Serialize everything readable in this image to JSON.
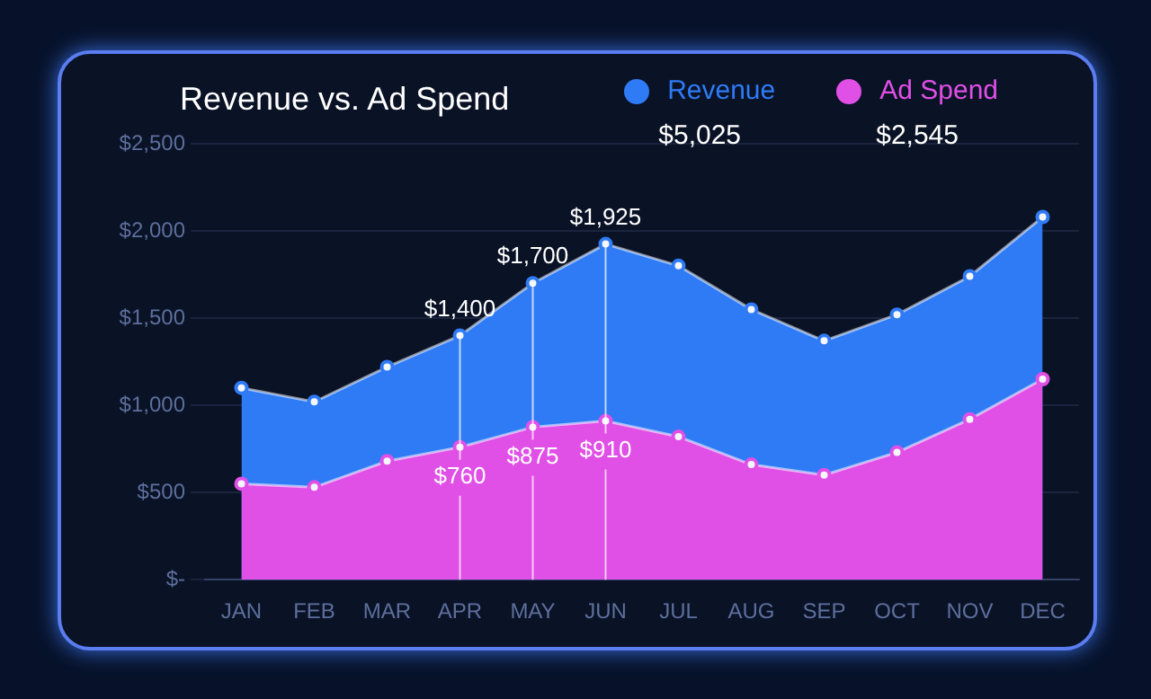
{
  "chart_data": {
    "type": "area",
    "title": "Revenue vs. Ad Spend",
    "categories": [
      "JAN",
      "FEB",
      "MAR",
      "APR",
      "MAY",
      "JUN",
      "JUL",
      "AUG",
      "SEP",
      "OCT",
      "NOV",
      "DEC"
    ],
    "series": [
      {
        "name": "Revenue",
        "color": "#2f7bf5",
        "values": [
          1100,
          1020,
          1220,
          1400,
          1700,
          1925,
          1800,
          1550,
          1370,
          1520,
          1740,
          2080
        ],
        "value_labels": [
          null,
          null,
          null,
          "$1,400",
          "$1,700",
          "$1,925",
          null,
          null,
          null,
          null,
          null,
          null
        ]
      },
      {
        "name": "Ad Spend",
        "color": "#e04fe6",
        "values": [
          550,
          530,
          680,
          760,
          875,
          910,
          820,
          660,
          600,
          730,
          920,
          1150
        ],
        "value_labels": [
          null,
          null,
          null,
          "$760",
          "$875",
          "$910",
          null,
          null,
          null,
          null,
          null,
          null
        ]
      }
    ],
    "annotations": [
      "$5,025",
      "$2,545"
    ],
    "ref_lines": [
      {
        "axis": "x",
        "value": "APR",
        "color": "#ffffff"
      },
      {
        "axis": "x",
        "value": "MAY",
        "color": "#ffffff"
      },
      {
        "axis": "x",
        "value": "JUN",
        "color": "#ffffff"
      }
    ],
    "ylim": [
      0,
      2500
    ],
    "yticks": [
      {
        "value": 0,
        "label": "$-"
      },
      {
        "value": 500,
        "label": "$500"
      },
      {
        "value": 1000,
        "label": "$1,000"
      },
      {
        "value": 1500,
        "label": "$1,500"
      },
      {
        "value": 2000,
        "label": "$2,000"
      },
      {
        "value": 2500,
        "label": "$2,500"
      }
    ],
    "grid": "y",
    "legend": "top right",
    "marker": "circle"
  }
}
